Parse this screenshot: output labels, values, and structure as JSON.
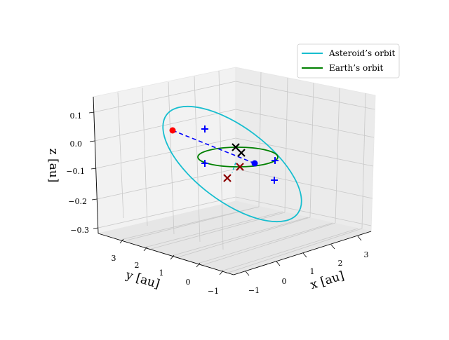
{
  "chart_data": {
    "type": "line",
    "projection": "3d",
    "xlabel": "x [au]",
    "ylabel": "y [au]",
    "zlabel": "z [au]",
    "xticks": [
      "−1",
      "0",
      "1",
      "2",
      "3"
    ],
    "yticks": [
      "−1",
      "0",
      "1",
      "2",
      "3"
    ],
    "zticks": [
      "0.1",
      "0.0",
      "−0.1",
      "−0.2",
      "−0.3"
    ],
    "xlim": [
      -1.6,
      3.6
    ],
    "ylim": [
      -1.6,
      3.6
    ],
    "zlim": [
      -0.32,
      0.15
    ],
    "grid": true,
    "legend": {
      "position": "top-right",
      "entries": [
        {
          "label": "Asteroid’s orbit",
          "color": "#17becf"
        },
        {
          "label": "Earth’s orbit",
          "color": "#008000"
        }
      ]
    },
    "series": [
      {
        "name": "Asteroid’s orbit",
        "color": "#17becf",
        "kind": "orbit",
        "a": 2.1,
        "e": 0.55,
        "inclination_deg": 8,
        "node_deg": 20,
        "peri_deg": 230
      },
      {
        "name": "Earth’s orbit",
        "color": "#008000",
        "kind": "orbit",
        "a": 1.0,
        "e": 0.0,
        "inclination_deg": 0
      }
    ],
    "markers": [
      {
        "marker": "circle",
        "color": "#ff0000",
        "x": 2.6,
        "y": 3.1,
        "z": 0.02
      },
      {
        "marker": "circle",
        "color": "#0000ff",
        "x": 0.7,
        "y": -0.6,
        "z": -0.02
      },
      {
        "marker": "plus",
        "color": "#0000ff",
        "x": 1.5,
        "y": 3.2,
        "z": 0.06
      },
      {
        "marker": "plus",
        "color": "#0000ff",
        "x": -0.7,
        "y": 1.4,
        "z": -0.04
      },
      {
        "marker": "plus",
        "color": "#0000ff",
        "x": 0.5,
        "y": -1.0,
        "z": -0.03
      },
      {
        "marker": "plus",
        "color": "#0000ff",
        "x": 0.4,
        "y": -0.6,
        "z": -0.13
      },
      {
        "marker": "cross",
        "color": "#000000",
        "x": 0.3,
        "y": 0.5,
        "z": 0.0
      },
      {
        "marker": "cross",
        "color": "#000000",
        "x": 0.1,
        "y": 0.4,
        "z": 0.0
      },
      {
        "marker": "cross",
        "color": "#8b0000",
        "x": -0.3,
        "y": 0.9,
        "z": -0.12
      },
      {
        "marker": "cross",
        "color": "#8b0000",
        "x": -0.2,
        "y": -0.1,
        "z": -0.02
      }
    ],
    "dashed_line": {
      "color": "#0000ff",
      "from": [
        2.6,
        3.1,
        0.02
      ],
      "to": [
        0.7,
        -0.6,
        -0.02
      ]
    }
  }
}
